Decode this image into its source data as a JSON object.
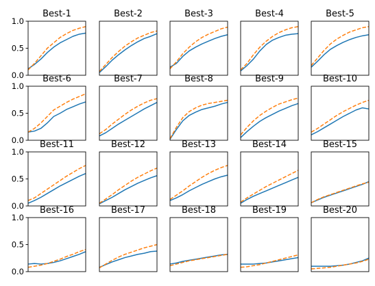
{
  "chart_data": {
    "type": "line",
    "layout": "grid of 4 rows x 5 columns",
    "ylim": [
      0,
      1
    ],
    "yticks": [
      "0.0",
      "0.5",
      "1.0"
    ],
    "y_ticklabels_on": "first column only",
    "x_ticks": "none",
    "grid": false,
    "legend": "none",
    "series_styles": [
      {
        "color": "#1f77b4",
        "style": "solid"
      },
      {
        "color": "#ff7f0e",
        "style": "dashed"
      }
    ],
    "panels": [
      {
        "title": "Best-1",
        "series": [
          {
            "values": [
              0.12,
              0.2,
              0.3,
              0.42,
              0.52,
              0.6,
              0.66,
              0.72,
              0.76,
              0.78
            ]
          },
          {
            "values": [
              0.1,
              0.22,
              0.36,
              0.5,
              0.6,
              0.7,
              0.77,
              0.83,
              0.87,
              0.9
            ]
          }
        ]
      },
      {
        "title": "Best-2",
        "series": [
          {
            "values": [
              0.05,
              0.16,
              0.28,
              0.38,
              0.47,
              0.55,
              0.62,
              0.68,
              0.72,
              0.77
            ]
          },
          {
            "values": [
              0.07,
              0.2,
              0.33,
              0.44,
              0.54,
              0.62,
              0.69,
              0.74,
              0.79,
              0.82
            ]
          }
        ]
      },
      {
        "title": "Best-3",
        "series": [
          {
            "values": [
              0.15,
              0.22,
              0.35,
              0.45,
              0.52,
              0.58,
              0.63,
              0.68,
              0.72,
              0.75
            ]
          },
          {
            "values": [
              0.12,
              0.25,
              0.4,
              0.52,
              0.62,
              0.7,
              0.76,
              0.81,
              0.86,
              0.89
            ]
          }
        ]
      },
      {
        "title": "Best-4",
        "series": [
          {
            "values": [
              0.08,
              0.18,
              0.3,
              0.45,
              0.57,
              0.65,
              0.7,
              0.74,
              0.76,
              0.77
            ]
          },
          {
            "values": [
              0.1,
              0.22,
              0.38,
              0.52,
              0.63,
              0.72,
              0.79,
              0.84,
              0.88,
              0.9
            ]
          }
        ]
      },
      {
        "title": "Best-5",
        "series": [
          {
            "values": [
              0.15,
              0.26,
              0.38,
              0.48,
              0.55,
              0.61,
              0.66,
              0.7,
              0.73,
              0.75
            ]
          },
          {
            "values": [
              0.18,
              0.32,
              0.46,
              0.58,
              0.67,
              0.74,
              0.8,
              0.84,
              0.88,
              0.9
            ]
          }
        ]
      },
      {
        "title": "Best-6",
        "series": [
          {
            "values": [
              0.15,
              0.17,
              0.22,
              0.32,
              0.44,
              0.5,
              0.57,
              0.62,
              0.67,
              0.71
            ]
          },
          {
            "values": [
              0.15,
              0.22,
              0.32,
              0.44,
              0.56,
              0.63,
              0.7,
              0.76,
              0.81,
              0.86
            ]
          }
        ]
      },
      {
        "title": "Best-7",
        "series": [
          {
            "values": [
              0.08,
              0.14,
              0.22,
              0.3,
              0.37,
              0.44,
              0.51,
              0.58,
              0.64,
              0.7
            ]
          },
          {
            "values": [
              0.12,
              0.2,
              0.3,
              0.39,
              0.48,
              0.56,
              0.63,
              0.69,
              0.74,
              0.77
            ]
          }
        ]
      },
      {
        "title": "Best-8",
        "series": [
          {
            "values": [
              0.02,
              0.2,
              0.36,
              0.46,
              0.52,
              0.57,
              0.6,
              0.63,
              0.67,
              0.7
            ]
          },
          {
            "values": [
              0.03,
              0.24,
              0.42,
              0.53,
              0.6,
              0.65,
              0.68,
              0.7,
              0.72,
              0.74
            ]
          }
        ]
      },
      {
        "title": "Best-9",
        "series": [
          {
            "values": [
              0.05,
              0.16,
              0.26,
              0.35,
              0.42,
              0.48,
              0.54,
              0.59,
              0.64,
              0.68
            ]
          },
          {
            "values": [
              0.1,
              0.24,
              0.36,
              0.46,
              0.54,
              0.61,
              0.67,
              0.71,
              0.75,
              0.78
            ]
          }
        ]
      },
      {
        "title": "Best-10",
        "series": [
          {
            "values": [
              0.1,
              0.16,
              0.23,
              0.3,
              0.37,
              0.44,
              0.5,
              0.56,
              0.6,
              0.58
            ]
          },
          {
            "values": [
              0.15,
              0.22,
              0.3,
              0.38,
              0.46,
              0.53,
              0.59,
              0.65,
              0.7,
              0.74
            ]
          }
        ]
      },
      {
        "title": "Best-11",
        "series": [
          {
            "values": [
              0.05,
              0.1,
              0.16,
              0.23,
              0.3,
              0.37,
              0.43,
              0.49,
              0.55,
              0.6
            ]
          },
          {
            "values": [
              0.1,
              0.15,
              0.23,
              0.31,
              0.39,
              0.47,
              0.55,
              0.62,
              0.69,
              0.75
            ]
          }
        ]
      },
      {
        "title": "Best-12",
        "series": [
          {
            "values": [
              0.04,
              0.1,
              0.16,
              0.23,
              0.3,
              0.36,
              0.42,
              0.47,
              0.52,
              0.56
            ]
          },
          {
            "values": [
              0.05,
              0.13,
              0.21,
              0.3,
              0.38,
              0.46,
              0.53,
              0.59,
              0.65,
              0.7
            ]
          }
        ]
      },
      {
        "title": "Best-13",
        "series": [
          {
            "values": [
              0.1,
              0.15,
              0.21,
              0.28,
              0.34,
              0.4,
              0.45,
              0.5,
              0.54,
              0.57
            ]
          },
          {
            "values": [
              0.12,
              0.2,
              0.28,
              0.37,
              0.45,
              0.53,
              0.6,
              0.66,
              0.71,
              0.75
            ]
          }
        ]
      },
      {
        "title": "Best-14",
        "series": [
          {
            "values": [
              0.05,
              0.12,
              0.18,
              0.23,
              0.28,
              0.33,
              0.38,
              0.43,
              0.48,
              0.53
            ]
          },
          {
            "values": [
              0.07,
              0.15,
              0.22,
              0.29,
              0.36,
              0.42,
              0.48,
              0.54,
              0.6,
              0.66
            ]
          }
        ]
      },
      {
        "title": "Best-15",
        "series": [
          {
            "values": [
              0.06,
              0.11,
              0.16,
              0.2,
              0.24,
              0.28,
              0.32,
              0.36,
              0.4,
              0.45
            ]
          },
          {
            "values": [
              0.06,
              0.12,
              0.17,
              0.21,
              0.25,
              0.29,
              0.33,
              0.37,
              0.41,
              0.44
            ]
          }
        ]
      },
      {
        "title": "Best-16",
        "series": [
          {
            "values": [
              0.14,
              0.15,
              0.14,
              0.15,
              0.17,
              0.2,
              0.24,
              0.28,
              0.32,
              0.37
            ]
          },
          {
            "values": [
              0.08,
              0.1,
              0.12,
              0.15,
              0.19,
              0.23,
              0.28,
              0.32,
              0.37,
              0.41
            ]
          }
        ]
      },
      {
        "title": "Best-17",
        "series": [
          {
            "values": [
              0.08,
              0.13,
              0.18,
              0.22,
              0.26,
              0.29,
              0.32,
              0.34,
              0.37,
              0.38
            ]
          },
          {
            "values": [
              0.07,
              0.14,
              0.21,
              0.27,
              0.32,
              0.36,
              0.4,
              0.44,
              0.47,
              0.5
            ]
          }
        ]
      },
      {
        "title": "Best-18",
        "series": [
          {
            "values": [
              0.14,
              0.16,
              0.19,
              0.21,
              0.23,
              0.25,
              0.27,
              0.29,
              0.31,
              0.32
            ]
          },
          {
            "values": [
              0.11,
              0.14,
              0.17,
              0.2,
              0.22,
              0.24,
              0.26,
              0.28,
              0.3,
              0.32
            ]
          }
        ]
      },
      {
        "title": "Best-19",
        "series": [
          {
            "values": [
              0.14,
              0.14,
              0.14,
              0.15,
              0.16,
              0.18,
              0.2,
              0.22,
              0.24,
              0.26
            ]
          },
          {
            "values": [
              0.08,
              0.09,
              0.11,
              0.13,
              0.16,
              0.19,
              0.22,
              0.25,
              0.28,
              0.31
            ]
          }
        ]
      },
      {
        "title": "Best-20",
        "series": [
          {
            "values": [
              0.1,
              0.1,
              0.1,
              0.1,
              0.11,
              0.12,
              0.14,
              0.17,
              0.2,
              0.25
            ]
          },
          {
            "values": [
              0.05,
              0.06,
              0.07,
              0.08,
              0.1,
              0.12,
              0.14,
              0.16,
              0.19,
              0.23
            ]
          }
        ]
      }
    ]
  }
}
